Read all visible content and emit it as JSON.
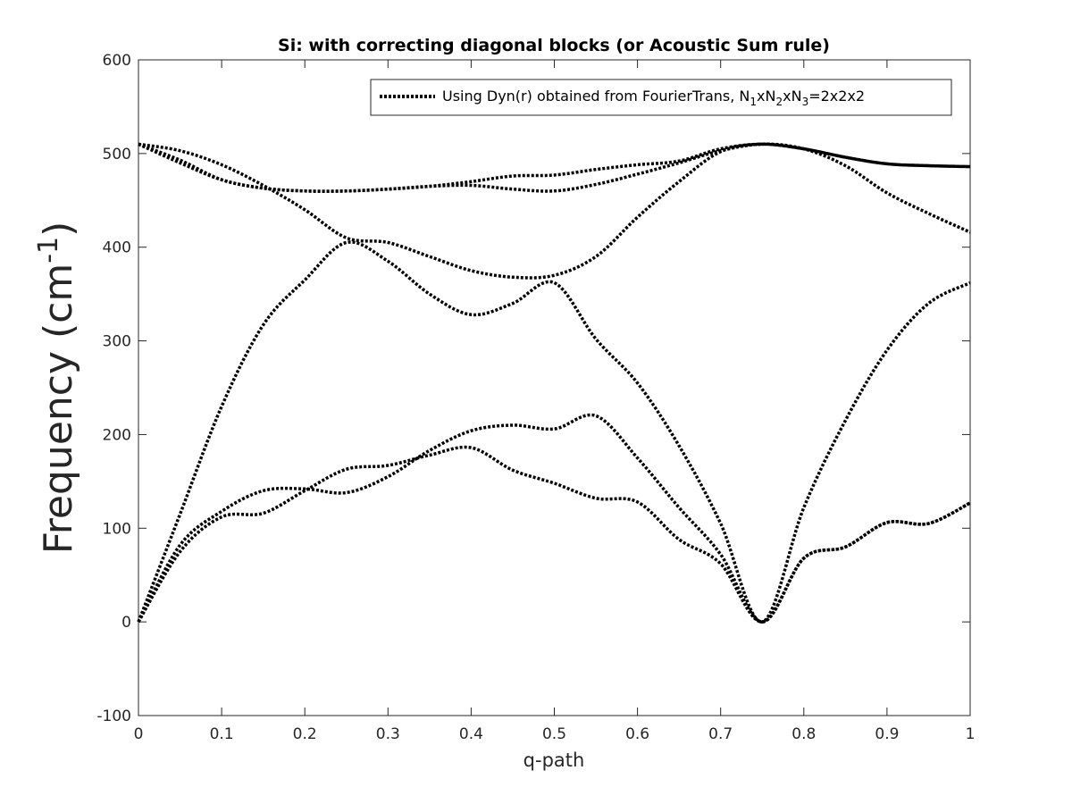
{
  "chart_data": {
    "type": "line",
    "title": "Si: with correcting diagonal blocks (or Acoustic Sum rule)",
    "xlabel": "q-path",
    "ylabel": {
      "text": "Frequency (cm",
      "sup": "-1",
      "close": ")"
    },
    "xlim": [
      0,
      1
    ],
    "ylim": [
      -100,
      600
    ],
    "xticks": [
      0,
      0.1,
      0.2,
      0.3,
      0.4,
      0.5,
      0.6,
      0.7,
      0.8,
      0.9,
      1
    ],
    "xtick_labels": [
      "0",
      "0.1",
      "0.2",
      "0.3",
      "0.4",
      "0.5",
      "0.6",
      "0.7",
      "0.8",
      "0.9",
      "1"
    ],
    "yticks": [
      -100,
      0,
      100,
      200,
      300,
      400,
      500,
      600
    ],
    "ytick_labels": [
      "-100",
      "0",
      "100",
      "200",
      "300",
      "400",
      "500",
      "600"
    ],
    "grid": false,
    "legend": {
      "placement": "top-right",
      "parts": [
        {
          "text": "Using Dyn(r) obtained from FourierTrans, N"
        },
        {
          "text": "1",
          "sub": true
        },
        {
          "text": "xN"
        },
        {
          "text": "2",
          "sub": true
        },
        {
          "text": "xN"
        },
        {
          "text": "3",
          "sub": true
        },
        {
          "text": "=2x2x2"
        }
      ]
    },
    "line_style": "dotted",
    "line_color": "#000000",
    "series": [
      {
        "x": [
          0,
          0.05,
          0.1,
          0.15,
          0.2,
          0.25,
          0.3,
          0.35,
          0.4,
          0.45,
          0.5,
          0.55,
          0.6,
          0.65,
          0.7,
          0.75,
          0.8,
          0.85,
          0.9,
          0.95,
          1.0
        ],
        "values": [
          0,
          75,
          112,
          116,
          140,
          163,
          167,
          178,
          186,
          162,
          148,
          132,
          128,
          88,
          62,
          0,
          68,
          80,
          106,
          105,
          127
        ]
      },
      {
        "x": [
          0,
          0.05,
          0.1,
          0.15,
          0.2,
          0.25,
          0.3,
          0.35,
          0.4,
          0.45,
          0.5,
          0.55,
          0.6,
          0.65,
          0.7,
          0.75,
          0.8,
          0.85,
          0.9,
          0.95,
          1.0
        ],
        "values": [
          0,
          82,
          118,
          140,
          142,
          138,
          155,
          183,
          204,
          210,
          206,
          220,
          175,
          122,
          72,
          0,
          68,
          80,
          106,
          105,
          127
        ]
      },
      {
        "x": [
          0,
          0.05,
          0.1,
          0.15,
          0.2,
          0.25,
          0.3,
          0.35,
          0.4,
          0.45,
          0.5,
          0.55,
          0.6,
          0.65,
          0.7,
          0.75,
          0.8,
          0.85,
          0.9,
          0.95,
          1.0
        ],
        "values": [
          0,
          115,
          230,
          317,
          365,
          405,
          385,
          350,
          328,
          340,
          362,
          302,
          255,
          188,
          105,
          0,
          122,
          215,
          290,
          340,
          362
        ]
      },
      {
        "x": [
          0,
          0.05,
          0.1,
          0.15,
          0.2,
          0.25,
          0.3,
          0.35,
          0.4,
          0.45,
          0.5,
          0.55,
          0.6,
          0.65,
          0.7,
          0.75,
          0.8,
          0.85,
          0.9,
          0.95,
          1.0
        ],
        "values": [
          510,
          503,
          488,
          466,
          440,
          410,
          405,
          390,
          375,
          368,
          370,
          390,
          432,
          470,
          502,
          510,
          505,
          487,
          458,
          436,
          416
        ]
      },
      {
        "x": [
          0,
          0.05,
          0.1,
          0.15,
          0.2,
          0.25,
          0.3,
          0.35,
          0.4,
          0.45,
          0.5,
          0.55,
          0.6,
          0.65,
          0.7,
          0.75,
          0.8,
          0.85,
          0.9,
          0.95,
          1.0
        ],
        "values": [
          510,
          493,
          472,
          463,
          460,
          460,
          462,
          465,
          466,
          462,
          460,
          467,
          478,
          490,
          503,
          510,
          505,
          496,
          489,
          487,
          486
        ]
      },
      {
        "x": [
          0,
          0.05,
          0.1,
          0.15,
          0.2,
          0.25,
          0.3,
          0.35,
          0.4,
          0.45,
          0.5,
          0.55,
          0.6,
          0.65,
          0.7,
          0.75,
          0.8,
          0.85,
          0.9,
          0.95,
          1.0
        ],
        "values": [
          510,
          490,
          472,
          463,
          460,
          460,
          462,
          465,
          470,
          476,
          477,
          483,
          488,
          492,
          505,
          510,
          505,
          496,
          489,
          487,
          486
        ]
      }
    ]
  }
}
